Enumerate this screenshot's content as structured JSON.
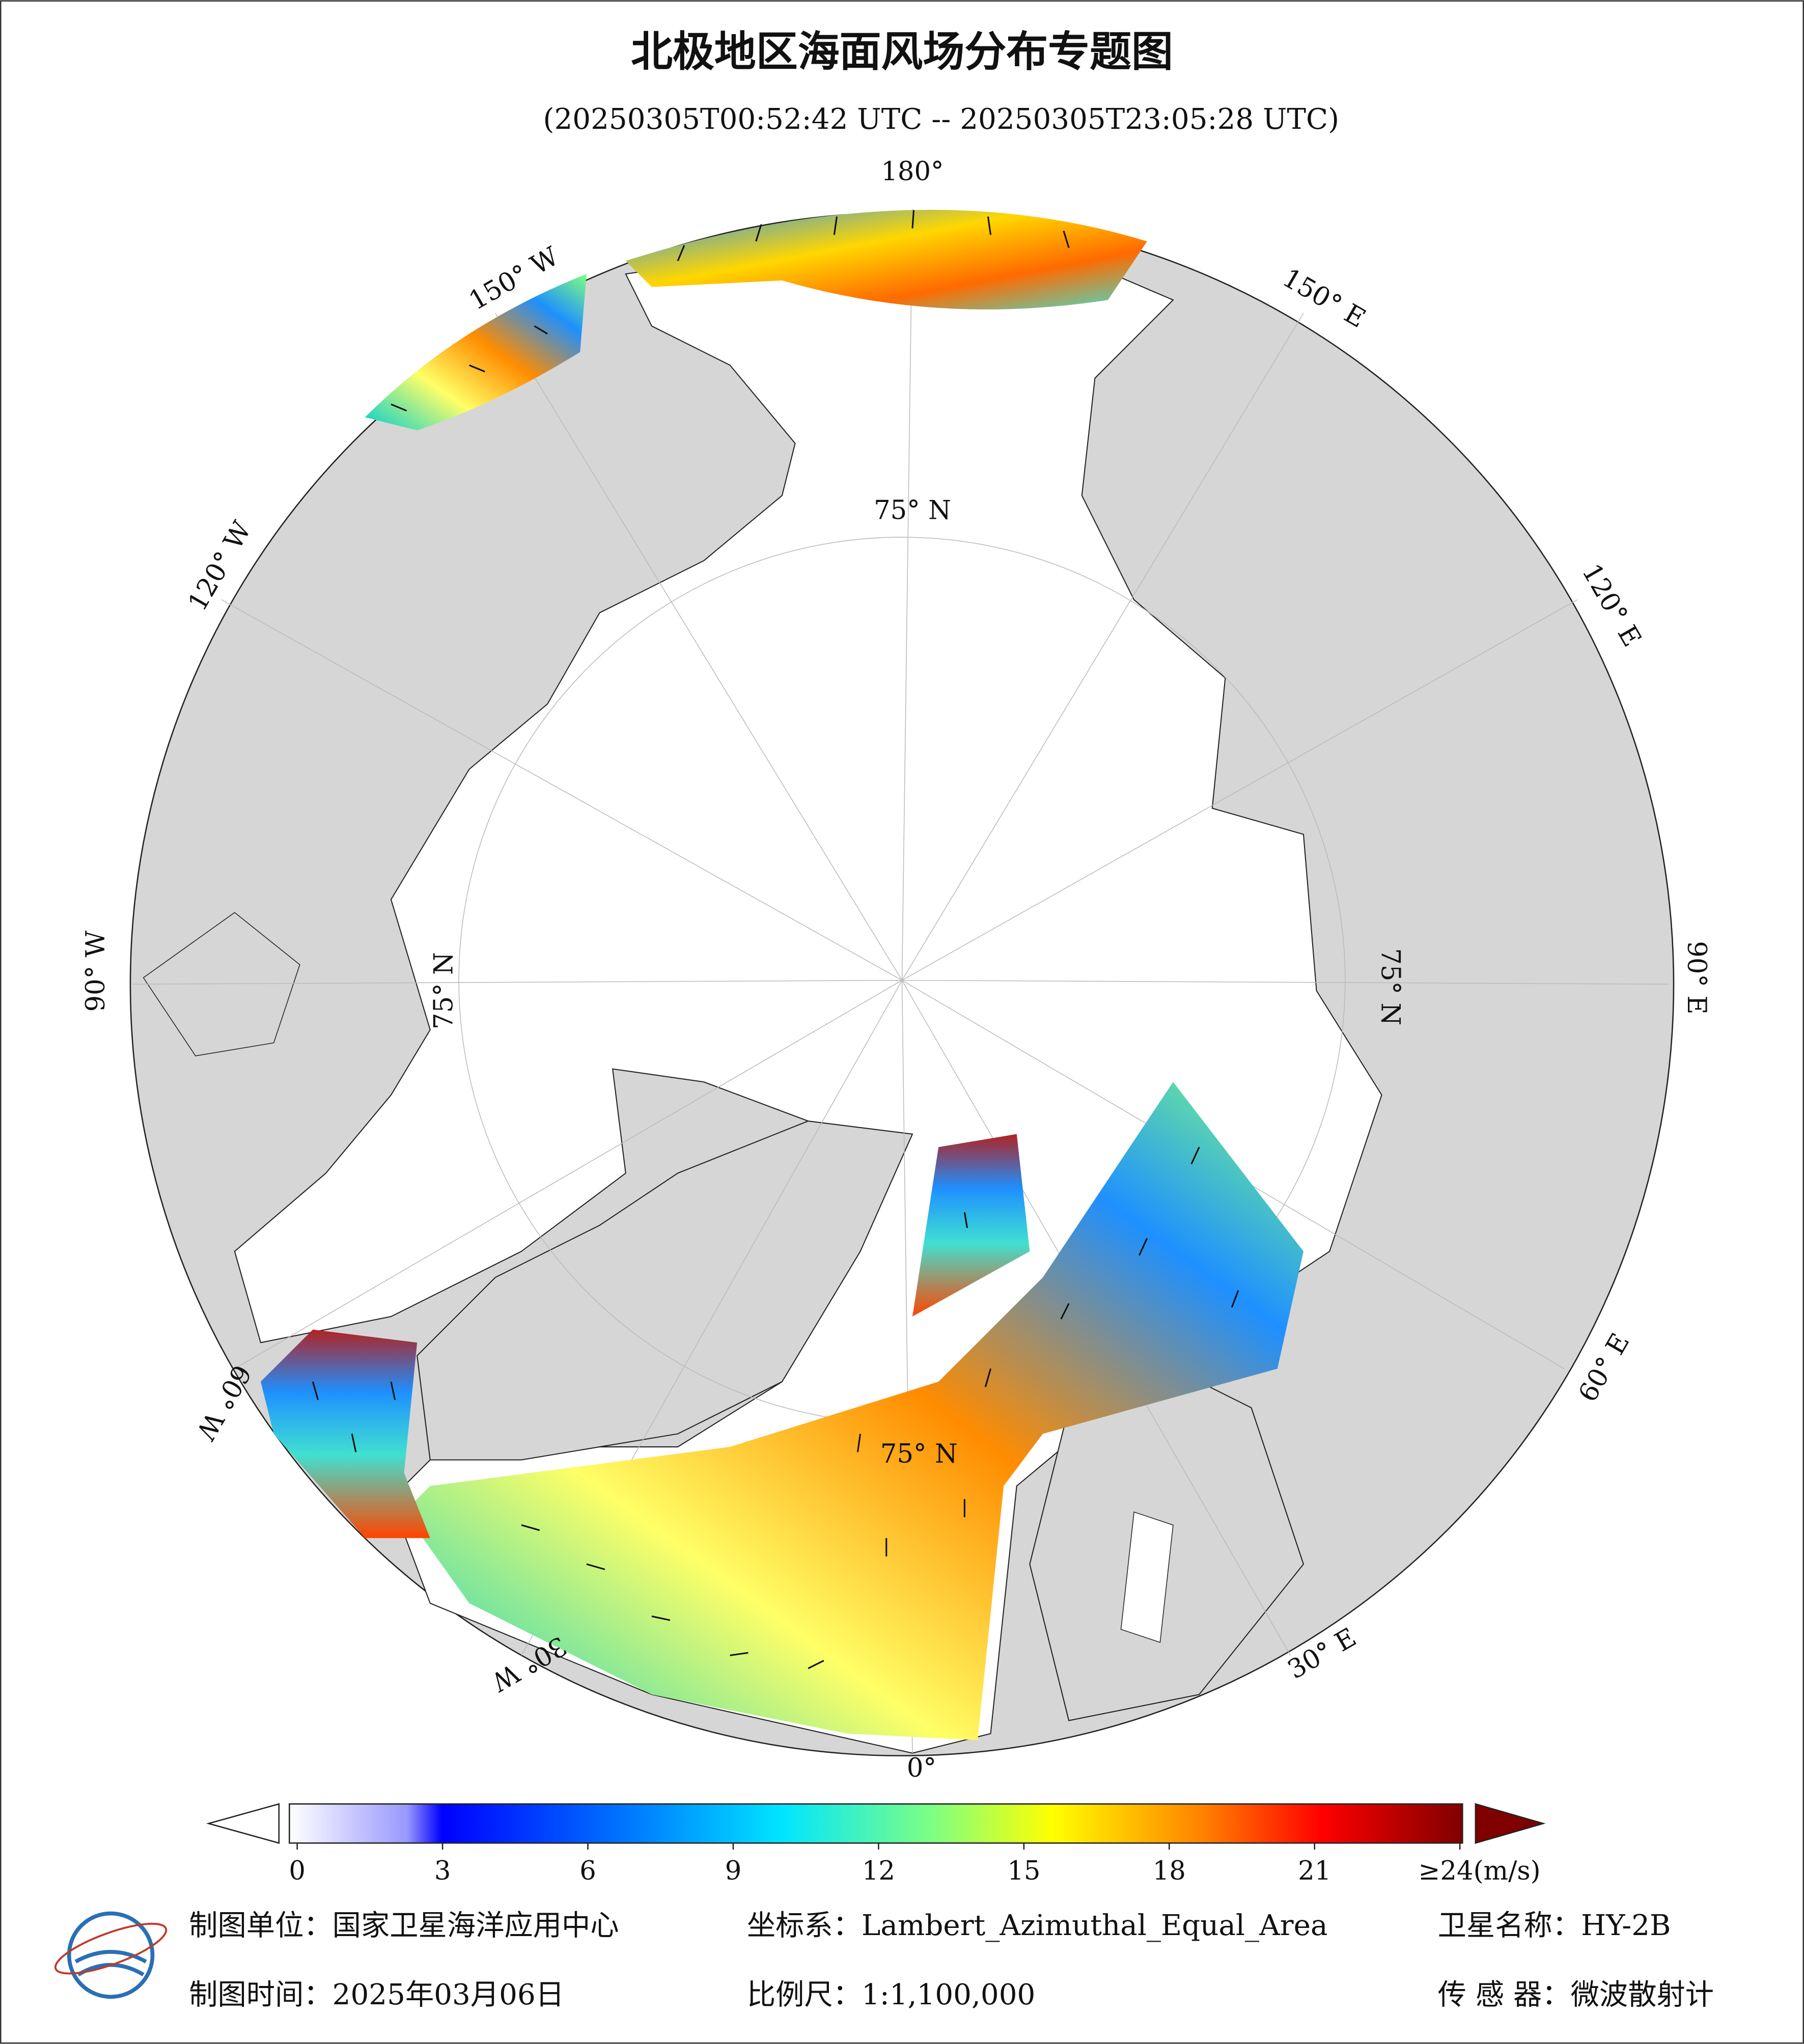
{
  "header": {
    "title": "北极地区海面风场分布专题图",
    "subtitle": "(20250305T00:52:42 UTC -- 20250305T23:05:28 UTC)"
  },
  "map": {
    "lon_labels": [
      "180°",
      "150° W",
      "120° W",
      "90° W",
      "60° W",
      "30° W",
      "0°",
      "30° E",
      "60° E",
      "90° E",
      "120° E",
      "150° E"
    ],
    "lat_labels": [
      "75° N",
      "75° N",
      "75° N",
      "75° N"
    ]
  },
  "colorbar": {
    "ticks": [
      0,
      3,
      6,
      9,
      12,
      15,
      18,
      21,
      {
        "value": 24,
        "label": "≥24(m/s)"
      }
    ]
  },
  "footer": {
    "unit": "制图单位：国家卫星海洋应用中心",
    "crs": "坐标系：Lambert_Azimuthal_Equal_Area",
    "satellite": "卫星名称：HY-2B",
    "date": "制图时间：2025年03月06日",
    "scale": "比例尺：1:1,100,000",
    "sensor": "传 感 器：微波散射计"
  }
}
